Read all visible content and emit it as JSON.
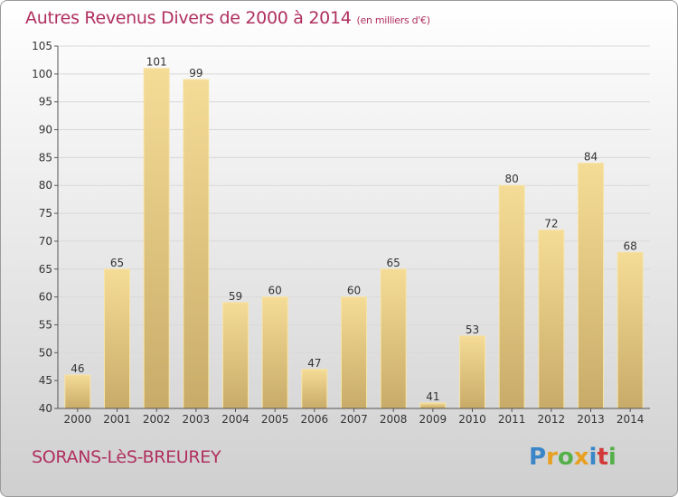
{
  "header": {
    "title": "Autres Revenus Divers de 2000 à 2014",
    "unit": "(en milliers d'€)"
  },
  "footer": {
    "city": "SORANS-LèS-BREUREY",
    "logo": "Proxiti",
    "logo_colors": [
      "#3a86c8",
      "#e8a020",
      "#56b04a",
      "#e8a020",
      "#3a86c8",
      "#d23a3a",
      "#56b04a"
    ]
  },
  "colors": {
    "title": "#b03060",
    "bar_top": "#f5dc96",
    "bar_bottom": "#c8ab68",
    "grid": "#d8d8d8"
  },
  "chart_data": {
    "type": "bar",
    "title": "Autres Revenus Divers de 2000 à 2014",
    "subtitle": "(en milliers d'€)",
    "xlabel": "",
    "ylabel": "",
    "categories": [
      "2000",
      "2001",
      "2002",
      "2003",
      "2004",
      "2005",
      "2006",
      "2007",
      "2008",
      "2009",
      "2010",
      "2011",
      "2012",
      "2013",
      "2014"
    ],
    "values": [
      46,
      65,
      101,
      99,
      59,
      60,
      47,
      60,
      65,
      41,
      53,
      80,
      72,
      84,
      68
    ],
    "ylim": [
      40,
      105
    ],
    "yticks": [
      40,
      45,
      50,
      55,
      60,
      65,
      70,
      75,
      80,
      85,
      90,
      95,
      100,
      105
    ],
    "grid": true,
    "data_labels": true,
    "legend": "none"
  }
}
